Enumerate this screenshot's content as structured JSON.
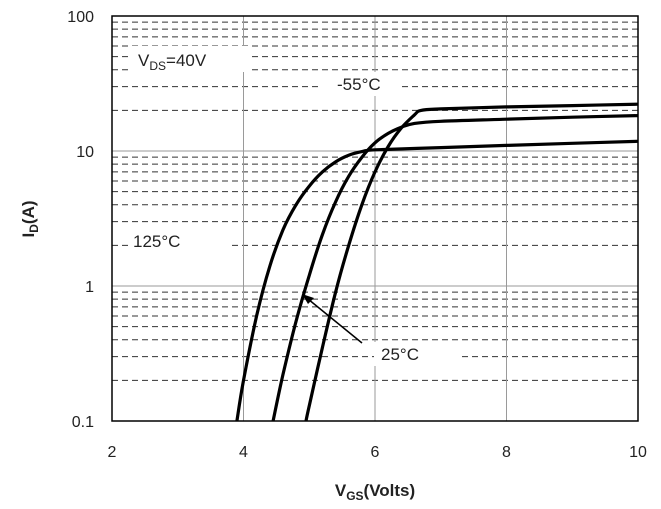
{
  "chart_data": {
    "type": "line",
    "xscale": "linear",
    "yscale": "log",
    "xlim": [
      2,
      10
    ],
    "ylim": [
      0.1,
      100
    ],
    "xticks": [
      "2",
      "4",
      "6",
      "8",
      "10"
    ],
    "yticks": [
      "0.1",
      "1",
      "10",
      "100"
    ],
    "xticks_values": [
      2,
      4,
      6,
      8,
      10
    ],
    "yticks_values": [
      0.1,
      1,
      10,
      100
    ],
    "xlabel": {
      "main": "V",
      "sub": "GS",
      "rest": "(Volts)"
    },
    "ylabel": {
      "main": "I",
      "sub": "D",
      "rest": "(A)"
    },
    "grid": true,
    "annotations": {
      "vds": {
        "main": "V",
        "sub": "DS",
        "rest": "=40V"
      },
      "t_minus55": "-55°C",
      "t_125": "125°C",
      "t_25": "25°C"
    },
    "series": [
      {
        "name": "125°C",
        "points": [
          [
            3.9,
            0.1
          ],
          [
            4.0,
            0.2
          ],
          [
            4.2,
            0.6
          ],
          [
            4.4,
            1.4
          ],
          [
            4.6,
            2.6
          ],
          [
            4.8,
            4.0
          ],
          [
            5.0,
            5.5
          ],
          [
            5.2,
            7.0
          ],
          [
            5.4,
            8.3
          ],
          [
            5.6,
            9.3
          ],
          [
            5.8,
            9.9
          ],
          [
            6.0,
            10.2
          ],
          [
            7.0,
            10.6
          ],
          [
            8.0,
            11.0
          ],
          [
            9.0,
            11.4
          ],
          [
            10.0,
            11.8
          ]
        ]
      },
      {
        "name": "25°C",
        "points": [
          [
            4.45,
            0.1
          ],
          [
            4.6,
            0.22
          ],
          [
            4.8,
            0.55
          ],
          [
            5.0,
            1.2
          ],
          [
            5.2,
            2.4
          ],
          [
            5.4,
            4.2
          ],
          [
            5.6,
            6.5
          ],
          [
            5.8,
            9.0
          ],
          [
            6.0,
            11.5
          ],
          [
            6.2,
            13.5
          ],
          [
            6.4,
            15.0
          ],
          [
            6.6,
            16.0
          ],
          [
            7.0,
            16.6
          ],
          [
            8.0,
            17.2
          ],
          [
            9.0,
            17.8
          ],
          [
            10.0,
            18.3
          ]
        ]
      },
      {
        "name": "-55°C",
        "points": [
          [
            4.95,
            0.1
          ],
          [
            5.0,
            0.13
          ],
          [
            5.2,
            0.35
          ],
          [
            5.4,
            0.9
          ],
          [
            5.6,
            2.0
          ],
          [
            5.8,
            4.0
          ],
          [
            6.0,
            7.0
          ],
          [
            6.2,
            10.8
          ],
          [
            6.4,
            14.8
          ],
          [
            6.6,
            18.5
          ],
          [
            6.7,
            20.0
          ],
          [
            7.0,
            20.5
          ],
          [
            8.0,
            21.2
          ],
          [
            9.0,
            21.7
          ],
          [
            10.0,
            22.2
          ]
        ]
      }
    ]
  }
}
